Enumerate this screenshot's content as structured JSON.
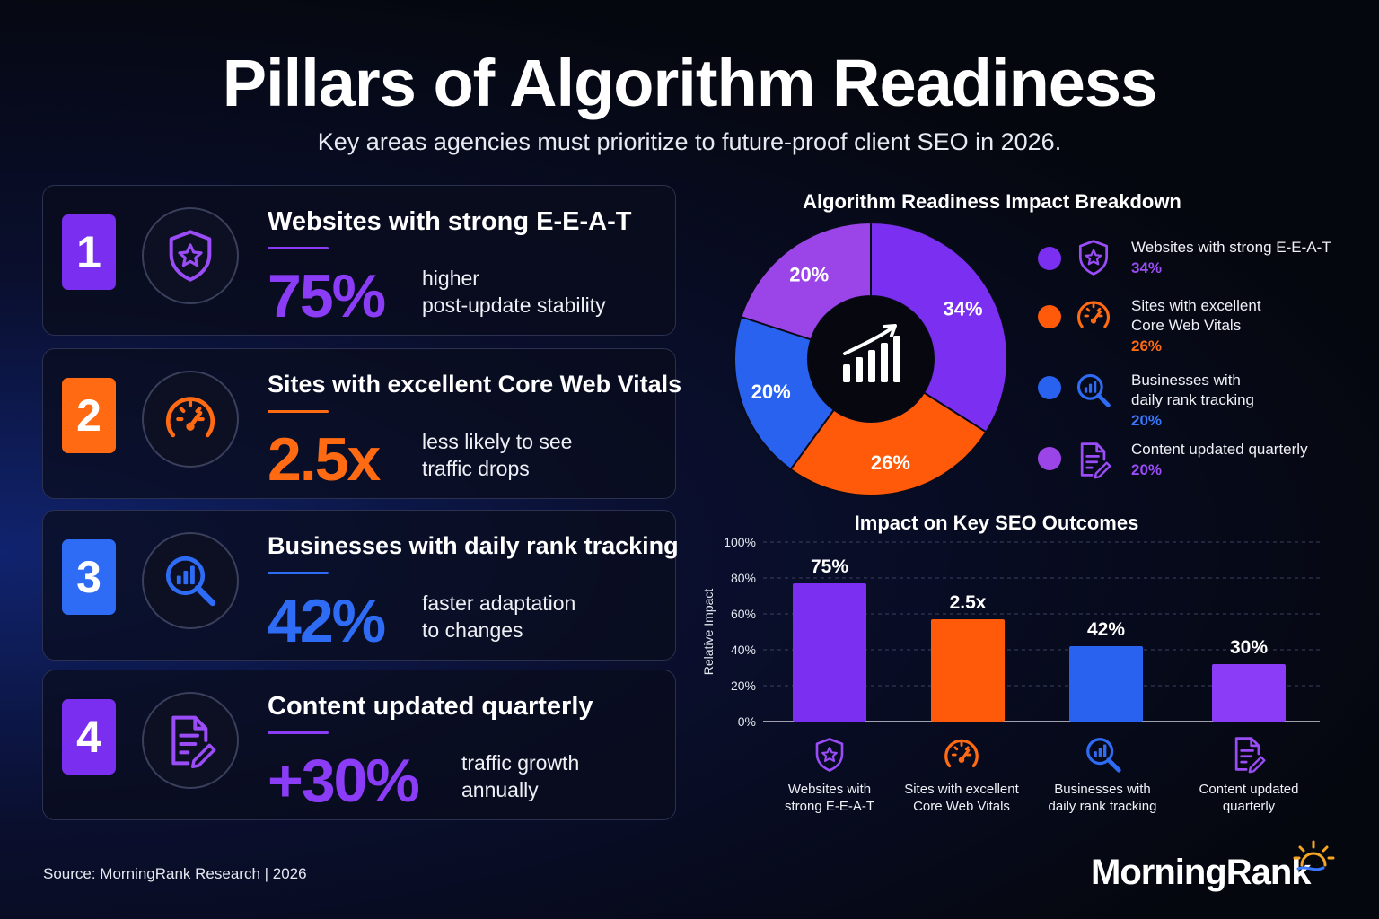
{
  "header": {
    "title": "Pillars of Algorithm Readiness",
    "subtitle": "Key areas agencies must prioritize to future-proof client SEO in 2026."
  },
  "pillars": [
    {
      "number": "1",
      "title": "Websites with strong E-E-A-T",
      "stat": "75%",
      "desc_line1": "higher",
      "desc_line2": "post-update stability",
      "color": "#8b3cf7",
      "icon": "shield-star-icon"
    },
    {
      "number": "2",
      "title": "Sites with excellent Core Web Vitals",
      "stat": "2.5x",
      "desc_line1": "less likely to see",
      "desc_line2": "traffic drops",
      "color": "#ff6a13",
      "icon": "speedometer-icon"
    },
    {
      "number": "3",
      "title": "Businesses with daily rank tracking",
      "stat": "42%",
      "desc_line1": "faster adaptation",
      "desc_line2": "to changes",
      "color": "#2f6cf5",
      "icon": "magnifier-chart-icon"
    },
    {
      "number": "4",
      "title": "Content updated quarterly",
      "stat": "+30%",
      "desc_line1": "traffic growth",
      "desc_line2": "annually",
      "color": "#8b3cf7",
      "icon": "document-pencil-icon"
    }
  ],
  "footer": {
    "source": "Source: MorningRank Research | 2026",
    "brand": "MorningRank"
  },
  "chart_data": [
    {
      "type": "pie",
      "title": "Algorithm Readiness Impact Breakdown",
      "donut": true,
      "center_icon": "growth-chart-icon",
      "legend_position": "right",
      "slices": [
        {
          "label": "Websites with strong E-E-A-T",
          "value": 34,
          "display": "34%",
          "color": "#7b2ff0",
          "icon": "shield-star-icon",
          "label_line1": "Websites with strong E-E-A-T",
          "label_line2": ""
        },
        {
          "label": "Sites with excellent Core Web Vitals",
          "value": 26,
          "display": "26%",
          "color": "#ff5a0a",
          "icon": "speedometer-icon",
          "label_line1": "Sites with excellent",
          "label_line2": "Core Web Vitals"
        },
        {
          "label": "Businesses with daily rank tracking",
          "value": 20,
          "display": "20%",
          "color": "#2a62f0",
          "icon": "magnifier-chart-icon",
          "label_line1": "Businesses with",
          "label_line2": "daily rank tracking"
        },
        {
          "label": "Content updated quarterly",
          "value": 20,
          "display": "20%",
          "color": "#9b45e8",
          "icon": "document-pencil-icon",
          "label_line1": "Content updated quarterly",
          "label_line2": ""
        }
      ]
    },
    {
      "type": "bar",
      "title": "Impact on Key SEO Outcomes",
      "ylabel": "Relative Impact",
      "ylim": [
        0,
        100
      ],
      "yticks": [
        "0%",
        "20%",
        "40%",
        "60%",
        "80%",
        "100%"
      ],
      "grid": true,
      "categories": [
        {
          "line1": "Websites with",
          "line2": "strong E-E-A-T",
          "icon": "shield-star-icon"
        },
        {
          "line1": "Sites with excellent",
          "line2": "Core Web Vitals",
          "icon": "speedometer-icon"
        },
        {
          "line1": "Businesses with",
          "line2": "daily rank tracking",
          "icon": "magnifier-chart-icon"
        },
        {
          "line1": "Content updated",
          "line2": "quarterly",
          "icon": "document-pencil-icon"
        }
      ],
      "values": [
        77,
        57,
        42,
        32
      ],
      "labels": [
        "75%",
        "2.5x",
        "42%",
        "30%"
      ],
      "colors": [
        "#7b2ff0",
        "#ff5a0a",
        "#2a62f0",
        "#8b3cf7"
      ]
    }
  ]
}
